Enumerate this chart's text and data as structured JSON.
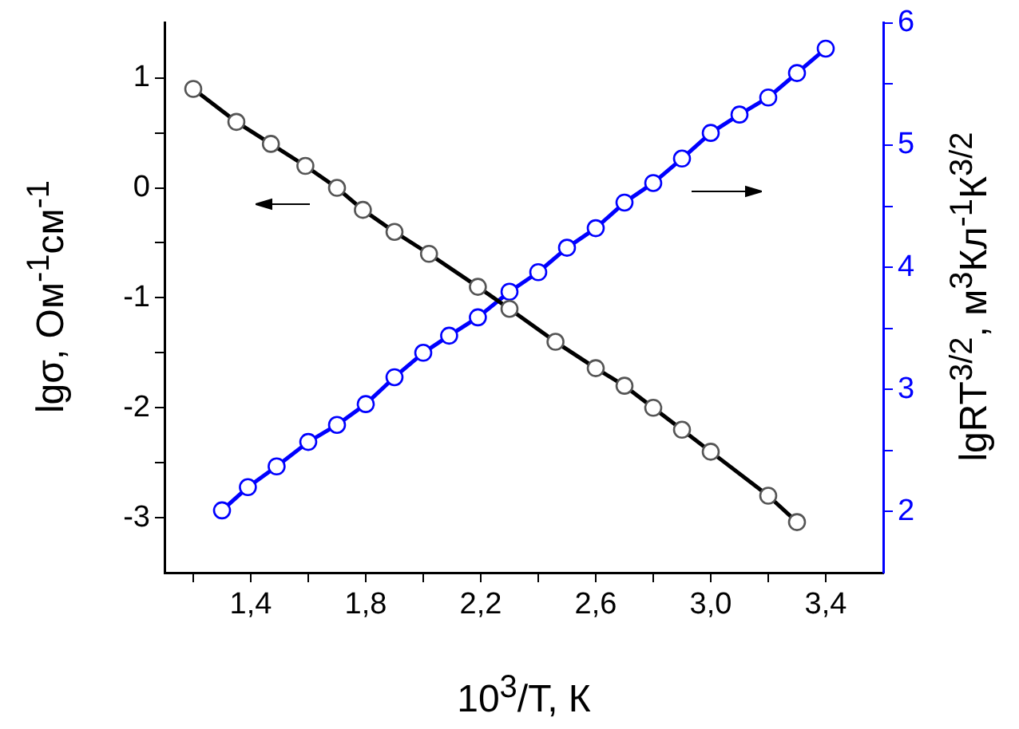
{
  "chart_data": {
    "type": "line",
    "xlabel": "10$^{3}$/T, К",
    "ylabel": "lgσ, Ом$^{-1}$см$^{-1}$",
    "y2label": "lgRT$^{3/2}$, м$^{3}$Кл$^{-1}$К$^{3/2}$",
    "marker": "circle",
    "line_style": "solid",
    "xlim": [
      1.1,
      3.6
    ],
    "xticks": [
      {
        "value": 1.2,
        "label": null
      },
      {
        "value": 1.4,
        "label": "1,4"
      },
      {
        "value": 1.6,
        "label": null
      },
      {
        "value": 1.8,
        "label": "1,8"
      },
      {
        "value": 2.0,
        "label": null
      },
      {
        "value": 2.2,
        "label": "2,2"
      },
      {
        "value": 2.4,
        "label": null
      },
      {
        "value": 2.6,
        "label": "2,6"
      },
      {
        "value": 2.8,
        "label": null
      },
      {
        "value": 3.0,
        "label": "3,0"
      },
      {
        "value": 3.2,
        "label": null
      },
      {
        "value": 3.4,
        "label": "3,4"
      }
    ],
    "ylim": [
      -3.5,
      1.5
    ],
    "yticks": [
      {
        "value": -3,
        "label": "-3"
      },
      {
        "value": -2.5,
        "label": null
      },
      {
        "value": -2,
        "label": "-2"
      },
      {
        "value": -1.5,
        "label": null
      },
      {
        "value": -1,
        "label": "-1"
      },
      {
        "value": -0.5,
        "label": null
      },
      0,
      {
        "value": 0.5,
        "label": null
      },
      1
    ],
    "y2lim": [
      1.5,
      6
    ],
    "y2ticks": [
      2,
      {
        "value": 2.5,
        "label": null
      },
      3,
      {
        "value": 3.5,
        "label": null
      },
      4,
      {
        "value": 4.5,
        "label": null
      },
      5,
      {
        "value": 5.5,
        "label": null
      },
      6
    ],
    "series": [
      {
        "color": "#000000",
        "x": [
          1.2,
          1.35,
          1.47,
          1.59,
          1.7,
          1.79,
          1.9,
          2.02,
          2.19,
          2.3,
          2.46,
          2.6,
          2.7,
          2.8,
          2.9,
          3.0,
          3.2,
          3.3
        ],
        "values": [
          0.9,
          0.6,
          0.4,
          0.2,
          0,
          -0.2,
          -0.4,
          -0.6,
          -0.9,
          -1.1,
          -1.4,
          -1.64,
          -1.8,
          -2.0,
          -2.2,
          -2.4,
          -2.8,
          -3.04
        ]
      },
      {
        "color": "#0000ff",
        "axis": "y2",
        "x": [
          1.3,
          1.39,
          1.49,
          1.6,
          1.7,
          1.8,
          1.9,
          2.0,
          2.09,
          2.19,
          2.3,
          2.4,
          2.5,
          2.6,
          2.7,
          2.8,
          2.9,
          3.0,
          3.1,
          3.2,
          3.3,
          3.4
        ],
        "values": [
          2.01,
          2.2,
          2.37,
          2.57,
          2.71,
          2.88,
          3.1,
          3.3,
          3.44,
          3.59,
          3.8,
          3.96,
          4.16,
          4.32,
          4.53,
          4.69,
          4.89,
          5.1,
          5.25,
          5.39,
          5.59,
          5.79
        ]
      }
    ]
  }
}
